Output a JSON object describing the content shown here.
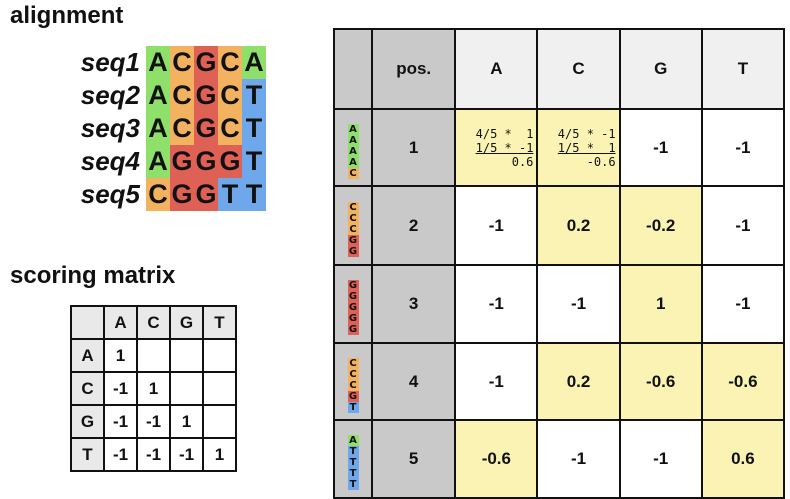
{
  "alignment": {
    "title": "alignment",
    "sequences": [
      {
        "name": "seq1",
        "bases": [
          "A",
          "C",
          "G",
          "C",
          "A"
        ]
      },
      {
        "name": "seq2",
        "bases": [
          "A",
          "C",
          "G",
          "C",
          "T"
        ]
      },
      {
        "name": "seq3",
        "bases": [
          "A",
          "C",
          "G",
          "C",
          "T"
        ]
      },
      {
        "name": "seq4",
        "bases": [
          "A",
          "G",
          "G",
          "G",
          "T"
        ]
      },
      {
        "name": "seq5",
        "bases": [
          "C",
          "G",
          "G",
          "T",
          "T"
        ]
      }
    ]
  },
  "scoring_matrix": {
    "title": "scoring matrix",
    "header": [
      "A",
      "C",
      "G",
      "T"
    ],
    "rows": [
      {
        "label": "A",
        "cells": [
          "1",
          "",
          "",
          ""
        ]
      },
      {
        "label": "C",
        "cells": [
          "-1",
          "1",
          "",
          ""
        ]
      },
      {
        "label": "G",
        "cells": [
          "-1",
          "-1",
          "1",
          ""
        ]
      },
      {
        "label": "T",
        "cells": [
          "-1",
          "-1",
          "-1",
          "1"
        ]
      }
    ]
  },
  "pwm": {
    "header": [
      "pos.",
      "A",
      "C",
      "G",
      "T"
    ],
    "rows": [
      {
        "pos": "1",
        "column": [
          "A",
          "A",
          "A",
          "A",
          "C"
        ],
        "values": [
          "",
          "",
          "-1",
          "-1"
        ],
        "calcA": [
          "4/5 *  1",
          "1/5 * -1",
          "0.6"
        ],
        "calcC": [
          "4/5 * -1",
          "1/5 *  1",
          "-0.6"
        ]
      },
      {
        "pos": "2",
        "column": [
          "C",
          "C",
          "C",
          "G",
          "G"
        ],
        "values": [
          "-1",
          "0.2",
          "-0.2",
          "-1"
        ]
      },
      {
        "pos": "3",
        "column": [
          "G",
          "G",
          "G",
          "G",
          "G"
        ],
        "values": [
          "-1",
          "-1",
          "1",
          "-1"
        ]
      },
      {
        "pos": "4",
        "column": [
          "C",
          "C",
          "C",
          "G",
          "T"
        ],
        "values": [
          "-1",
          "0.2",
          "-0.6",
          "-0.6"
        ]
      },
      {
        "pos": "5",
        "column": [
          "A",
          "T",
          "T",
          "T",
          "T"
        ],
        "values": [
          "-0.6",
          "-1",
          "-1",
          "0.6"
        ]
      }
    ],
    "highlight": [
      [
        true,
        true,
        false,
        false
      ],
      [
        false,
        true,
        true,
        false
      ],
      [
        false,
        false,
        true,
        false
      ],
      [
        false,
        true,
        true,
        true
      ],
      [
        true,
        false,
        false,
        true
      ]
    ]
  },
  "colors": {
    "A": "#8ee06a",
    "C": "#f2b25f",
    "G": "#df6055",
    "T": "#6fa8ea",
    "highlight": "#fbf3b4",
    "gray": "#c9c9c9"
  }
}
